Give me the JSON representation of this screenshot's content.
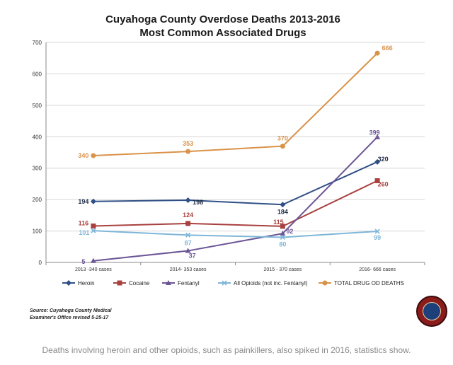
{
  "chart_data": {
    "type": "line",
    "title": "Cuyahoga County Overdose Deaths 2013-2016",
    "subtitle": "Most Common Associated Drugs",
    "categories": [
      "2013 -340 cases",
      "2014- 353 cases",
      "2015 - 370 cases",
      "2016- 666 cases"
    ],
    "ylim": [
      0,
      700
    ],
    "yticks": [
      "0",
      "100",
      "200",
      "300",
      "400",
      "500",
      "600",
      "700"
    ],
    "grid": true,
    "legend_position": "bottom",
    "series": [
      {
        "name": "Heroin",
        "values": [
          194,
          198,
          184,
          320
        ],
        "color": "#2f4f86",
        "marker": "diamond"
      },
      {
        "name": "Cocaine",
        "values": [
          116,
          124,
          115,
          260
        ],
        "color": "#a8413f",
        "marker": "square"
      },
      {
        "name": "Fentanyl",
        "values": [
          5,
          37,
          92,
          399
        ],
        "color": "#6b5596",
        "marker": "triangle"
      },
      {
        "name": "All Opioids (not inc. Fentanyl)",
        "values": [
          101,
          87,
          80,
          99
        ],
        "color": "#7fb6d8",
        "marker": "x"
      },
      {
        "name": "TOTAL DRUG OD DEATHS",
        "values": [
          340,
          353,
          370,
          666
        ],
        "color": "#d9924a",
        "marker": "circle"
      }
    ]
  },
  "source_note": {
    "line1": "Source: Cuyahoga County Medical",
    "line2": "Examiner's Office revised 5-25-17"
  },
  "caption": "Deaths involving heroin and other opioids, such as painkillers, also spiked in 2016, statistics show.",
  "seal_icon": "county-seal-icon"
}
